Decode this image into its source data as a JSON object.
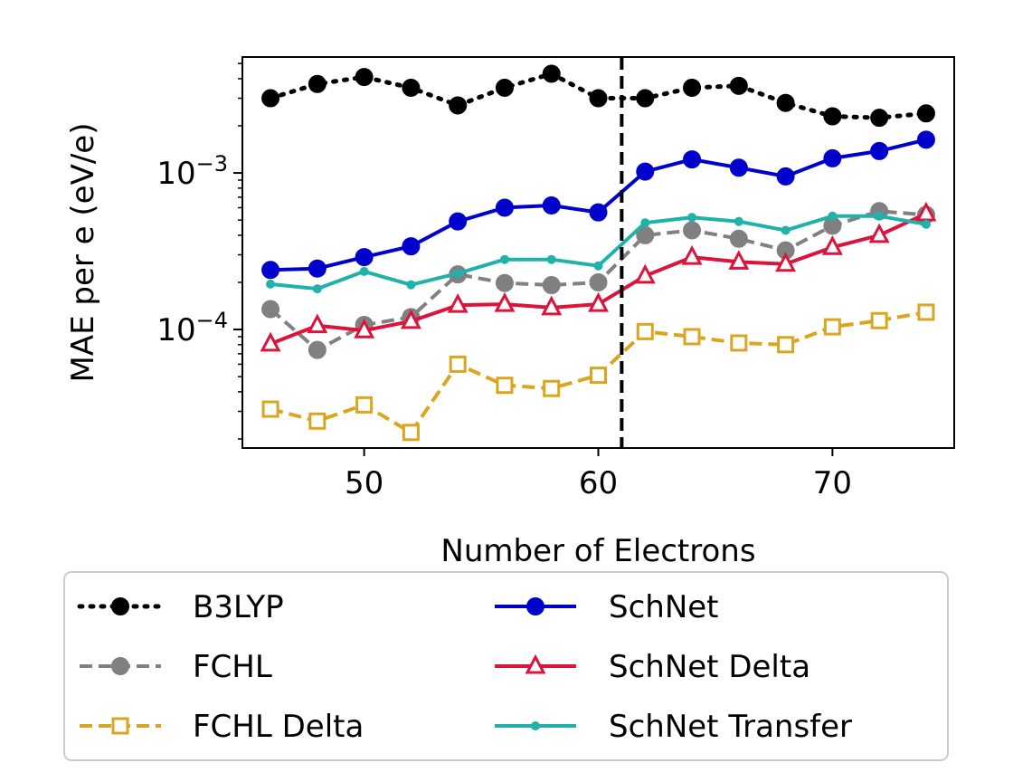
{
  "chart_data": {
    "type": "line",
    "title": "",
    "xlabel": "Number of Electrons",
    "ylabel": "MAE per e (eV/e)",
    "yscale": "log",
    "xlim": [
      44.8,
      75.2
    ],
    "ylim": [
      1.75e-05,
      0.0055
    ],
    "x_ticks": [
      50,
      60,
      70
    ],
    "x_tick_labels": [
      "50",
      "60",
      "70"
    ],
    "y_ticks": [
      0.0001,
      0.001
    ],
    "y_tick_label_base": "10",
    "y_tick_label_exponents": [
      "−4",
      "−3"
    ],
    "vline": {
      "x": 61,
      "color": "#000000",
      "style": "dashed"
    },
    "grid": false,
    "legend_placement": "below",
    "x": [
      46,
      48,
      50,
      52,
      54,
      56,
      58,
      60,
      62,
      64,
      66,
      68,
      70,
      72,
      74
    ],
    "series": [
      {
        "name": "B3LYP",
        "color": "#000000",
        "linestyle": "dotted",
        "marker": "circle",
        "values": [
          0.003,
          0.0037,
          0.0041,
          0.0035,
          0.0027,
          0.0035,
          0.0043,
          0.003,
          0.003,
          0.0035,
          0.0036,
          0.0028,
          0.0023,
          0.00225,
          0.0024
        ]
      },
      {
        "name": "FCHL",
        "color": "#808080",
        "linestyle": "dashed",
        "marker": "circle",
        "values": [
          0.000135,
          7.4e-05,
          0.000107,
          0.00012,
          0.000225,
          0.000198,
          0.000192,
          0.0002,
          0.0004,
          0.00043,
          0.00038,
          0.00032,
          0.00046,
          0.00057,
          0.00054
        ]
      },
      {
        "name": "FCHL Delta",
        "color": "#DAA520",
        "linestyle": "dashed",
        "marker": "square-open",
        "values": [
          3.1e-05,
          2.6e-05,
          3.3e-05,
          2.2e-05,
          6e-05,
          4.4e-05,
          4.2e-05,
          5.1e-05,
          9.7e-05,
          9e-05,
          8.2e-05,
          8e-05,
          0.000104,
          0.000114,
          0.000129
        ]
      },
      {
        "name": "SchNet",
        "color": "#0000CD",
        "linestyle": "solid",
        "marker": "circle",
        "values": [
          0.00024,
          0.000245,
          0.00029,
          0.00034,
          0.00049,
          0.0006,
          0.00062,
          0.00056,
          0.00102,
          0.00122,
          0.00108,
          0.00095,
          0.00124,
          0.00138,
          0.00163
        ]
      },
      {
        "name": "SchNet Delta",
        "color": "#DC143C",
        "linestyle": "solid",
        "marker": "triangle-open",
        "values": [
          8.1e-05,
          0.000106,
          9.85e-05,
          0.000113,
          0.000143,
          0.000145,
          0.000138,
          0.000145,
          0.00022,
          0.00029,
          0.00027,
          0.000262,
          0.000335,
          0.0004,
          0.00055
        ]
      },
      {
        "name": "SchNet Transfer",
        "color": "#20B2AA",
        "linestyle": "solid",
        "marker": "small-circle",
        "values": [
          0.000195,
          0.000182,
          0.000235,
          0.000193,
          0.000228,
          0.00028,
          0.00028,
          0.000255,
          0.00048,
          0.00052,
          0.00049,
          0.00043,
          0.00053,
          0.00053,
          0.00047
        ]
      }
    ]
  }
}
